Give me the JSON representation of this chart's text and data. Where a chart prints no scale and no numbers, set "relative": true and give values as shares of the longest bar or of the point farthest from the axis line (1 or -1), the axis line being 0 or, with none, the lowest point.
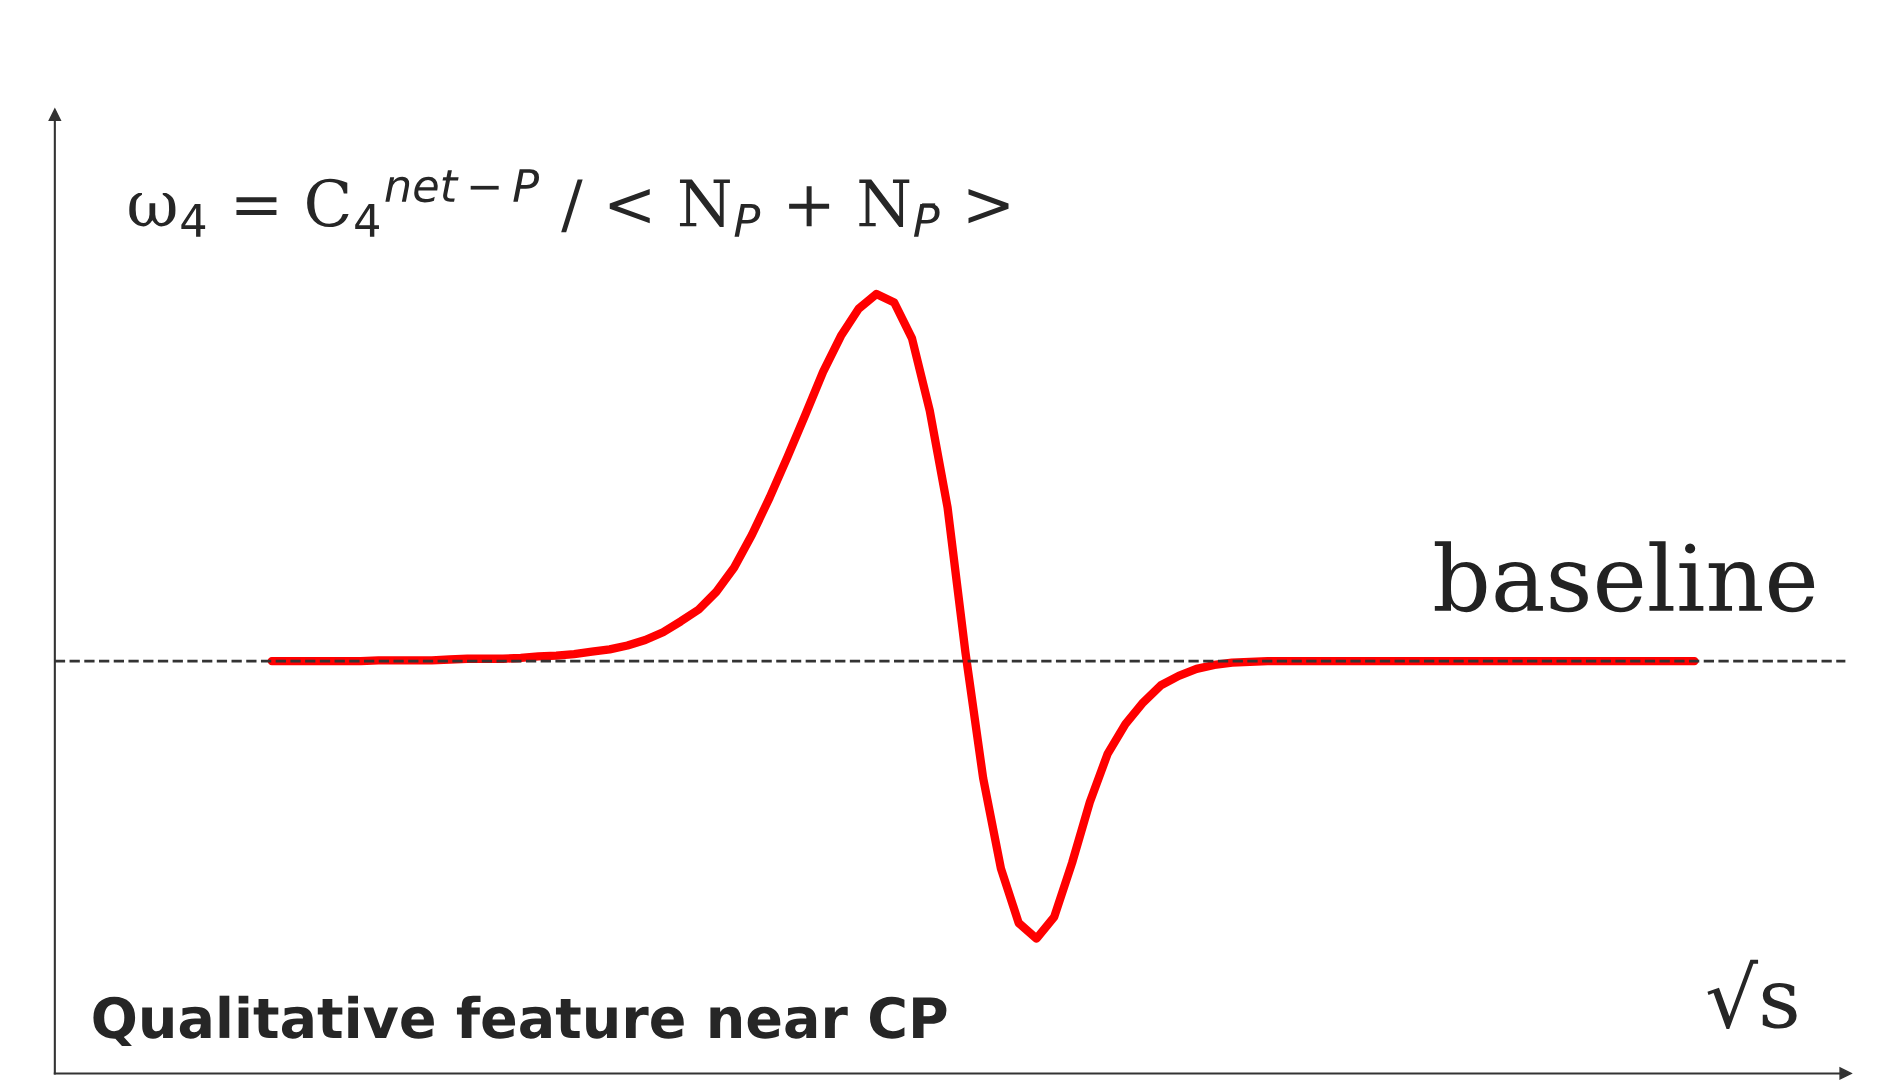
{
  "chart_data": {
    "type": "line",
    "relative": true,
    "ylabel": "ω$_{4}$ = C$_{4}$$^{net−P}$ / < N$_{P}$ + N$_{P̄}$ >",
    "xlabel": "√s",
    "categories": [
      null,
      null,
      null,
      null,
      null,
      null,
      null,
      null,
      null,
      null,
      null,
      null,
      null,
      null,
      null,
      null,
      null,
      null,
      null,
      null,
      null,
      null,
      null,
      null,
      null,
      null,
      null,
      null,
      null,
      null,
      null,
      null,
      null,
      null,
      null,
      null,
      null,
      null,
      null,
      null,
      null,
      null,
      null,
      null,
      null,
      null,
      null,
      null,
      null,
      null,
      null,
      null,
      null,
      null,
      null,
      null,
      null,
      null,
      null,
      null,
      null,
      null,
      null,
      null,
      null,
      null,
      null,
      null,
      null,
      null,
      null,
      null,
      null,
      null,
      null,
      null,
      null,
      null,
      null,
      null,
      null
    ],
    "series": [
      {
        "color": "#ff0000",
        "values": [
          0.529,
          0.529,
          0.529,
          0.529,
          0.529,
          0.529,
          0.53,
          0.53,
          0.53,
          0.53,
          0.531,
          0.532,
          0.532,
          0.532,
          0.533,
          0.535,
          0.536,
          0.538,
          0.541,
          0.544,
          0.549,
          0.556,
          0.566,
          0.58,
          0.595,
          0.618,
          0.649,
          0.691,
          0.739,
          0.791,
          0.845,
          0.9,
          0.946,
          0.981,
          1,
          0.989,
          0.943,
          0.85,
          0.726,
          0.541,
          0.379,
          0.263,
          0.193,
          0.173,
          0.201,
          0.27,
          0.348,
          0.41,
          0.448,
          0.476,
          0.498,
          0.51,
          0.519,
          0.524,
          0.527,
          0.528,
          0.529,
          0.529,
          0.529,
          0.529,
          0.529,
          0.529,
          0.529,
          0.529,
          0.529,
          0.529,
          0.529,
          0.529,
          0.529,
          0.529,
          0.529,
          0.529,
          0.529,
          0.529,
          0.529,
          0.529,
          0.529,
          0.529,
          0.529,
          0.529,
          0.529
        ]
      }
    ],
    "ref_lines": [
      {
        "axis": "y",
        "value": 0.529,
        "label": "baseline",
        "color": "#333333",
        "line_style": "dashed"
      }
    ],
    "annotations": [
      "Qualitative feature near CP"
    ],
    "legend": false,
    "marker": "none",
    "line_style": "solid"
  }
}
